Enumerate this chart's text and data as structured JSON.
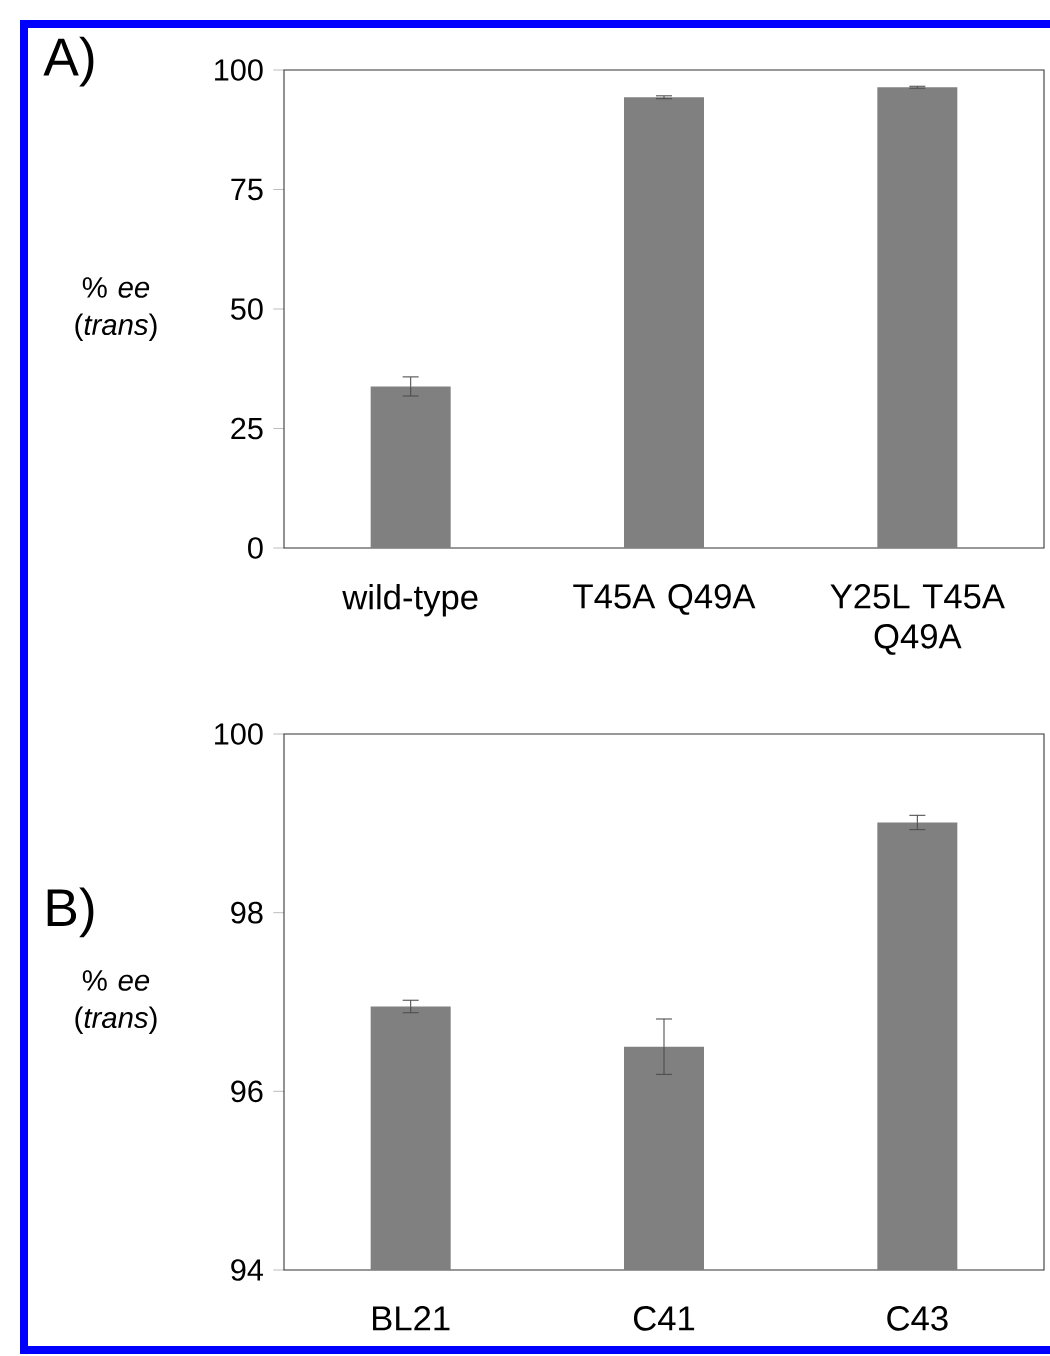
{
  "chart_data": [
    {
      "type": "bar",
      "title": "A)",
      "ylabel": "% *ee* (*trans*)",
      "categories": [
        "wild-type",
        "T45A Q49A",
        "Y25L T45A Q49A"
      ],
      "values": [
        33.8,
        94.3,
        96.4
      ],
      "errors": [
        2,
        0.3,
        0.2
      ],
      "color": "#808080",
      "ylim": [
        0,
        100
      ],
      "yticks": [
        0,
        25,
        50,
        75,
        100
      ]
    },
    {
      "type": "bar",
      "title": "B)",
      "ylabel": "% *ee* (*trans*)",
      "categories": [
        "BL21",
        "C41",
        "C43"
      ],
      "values": [
        96.95,
        96.5,
        99.01
      ],
      "errors": [
        0.07,
        0.31,
        0.08
      ],
      "color": "#808080",
      "ylim": [
        94,
        100
      ],
      "yticks": [
        94,
        96,
        98,
        100
      ]
    }
  ]
}
